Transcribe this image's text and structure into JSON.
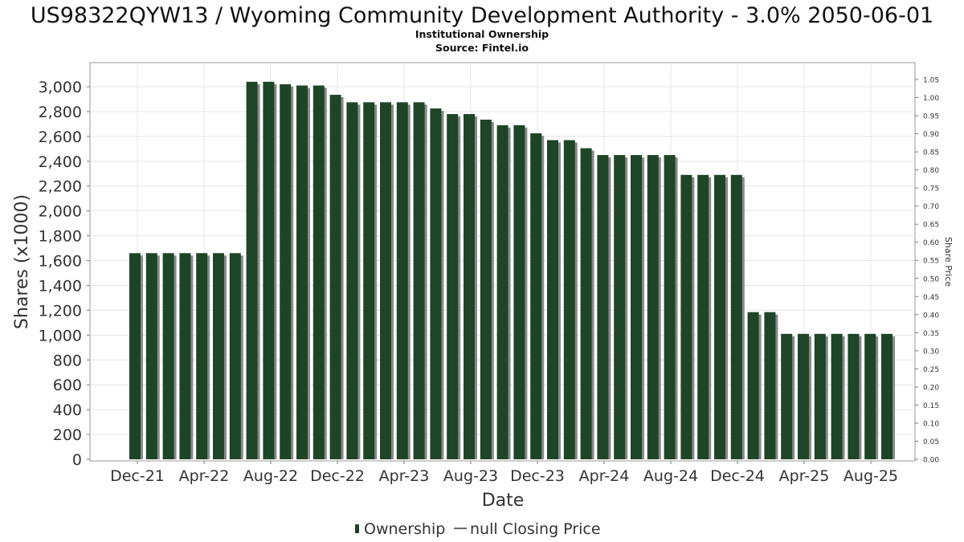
{
  "chart_data": {
    "type": "bar",
    "title": "US98322QYW13 / Wyoming Community Development Authority - 3.0% 2050-06-01",
    "subtitle_1": "Institutional Ownership",
    "subtitle_2": "Source: Fintel.io",
    "xlabel": "Date",
    "ylabel": "Shares (x1000)",
    "ylabel_right": "Share Price",
    "ylim": [
      0,
      3050
    ],
    "ylim_right": [
      0,
      1.05
    ],
    "y_ticks": [
      "0",
      "200",
      "400",
      "600",
      "800",
      "1,000",
      "1,200",
      "1,400",
      "1,600",
      "1,800",
      "2,000",
      "2,200",
      "2,400",
      "2,600",
      "2,800",
      "3,000"
    ],
    "y_ticks_right": [
      "0.00",
      "0.05",
      "0.10",
      "0.15",
      "0.20",
      "0.25",
      "0.30",
      "0.35",
      "0.40",
      "0.45",
      "0.50",
      "0.55",
      "0.60",
      "0.65",
      "0.70",
      "0.75",
      "0.80",
      "0.85",
      "0.90",
      "0.95",
      "1.00",
      "1.05"
    ],
    "x_tick_labels": [
      "Dec-21",
      "Apr-22",
      "Aug-22",
      "Dec-22",
      "Apr-23",
      "Aug-23",
      "Dec-23",
      "Apr-24",
      "Aug-24",
      "Dec-24",
      "Apr-25",
      "Aug-25"
    ],
    "grid": true,
    "legend_position": "bottom",
    "legend": [
      "Ownership",
      "null Closing Price"
    ],
    "bar_color": "#1e4528",
    "shadow_color": "#8a8a8a",
    "series": [
      {
        "name": "Ownership",
        "values": [
          1660,
          1660,
          1660,
          1660,
          1660,
          1660,
          1660,
          3040,
          3040,
          3020,
          3010,
          3010,
          2935,
          2875,
          2875,
          2875,
          2875,
          2875,
          2825,
          2780,
          2780,
          2735,
          2690,
          2690,
          2625,
          2570,
          2570,
          2505,
          2450,
          2450,
          2450,
          2450,
          2450,
          2290,
          2290,
          2290,
          2290,
          1185,
          1185,
          1010,
          1010,
          1010,
          1010,
          1010,
          1010,
          1010
        ]
      }
    ]
  }
}
